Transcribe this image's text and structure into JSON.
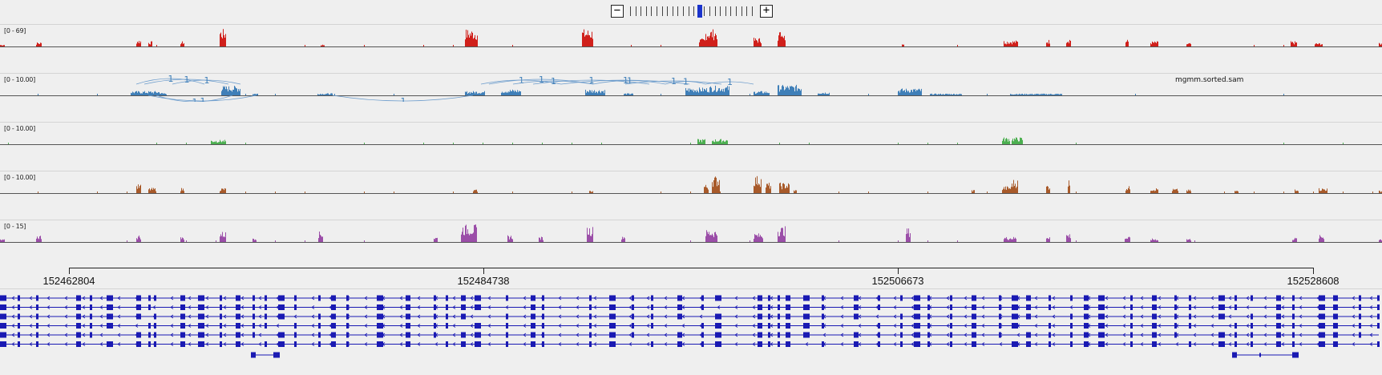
{
  "zoom": {
    "zoom_out_label": "−",
    "zoom_in_label": "+",
    "levels": 24,
    "current_level": 13
  },
  "tracks": [
    {
      "id": "track-1",
      "range_label": "[0 - 69]",
      "color": "#d0201b",
      "name": ""
    },
    {
      "id": "track-2",
      "range_label": "[0 - 10.00]",
      "color": "#3f7fb8",
      "name": "mgmm.sorted.sam",
      "junction_labels": [
        "1",
        "1",
        "1",
        "1",
        "1",
        "1",
        "1",
        "1",
        "1",
        "1",
        "1",
        "1",
        "1",
        "1",
        "1"
      ]
    },
    {
      "id": "track-3",
      "range_label": "[0 - 10.00]",
      "color": "#4caf50",
      "name": ""
    },
    {
      "id": "track-4",
      "range_label": "[0 - 10.00]",
      "color": "#a85a2a",
      "name": ""
    },
    {
      "id": "track-5",
      "range_label": "[0 - 15]",
      "color": "#9b4ea8",
      "name": ""
    }
  ],
  "ruler": {
    "ticks": [
      "152462804",
      "152484738",
      "152506673",
      "152528608"
    ]
  },
  "annotation_color": "#1a1ab3"
}
